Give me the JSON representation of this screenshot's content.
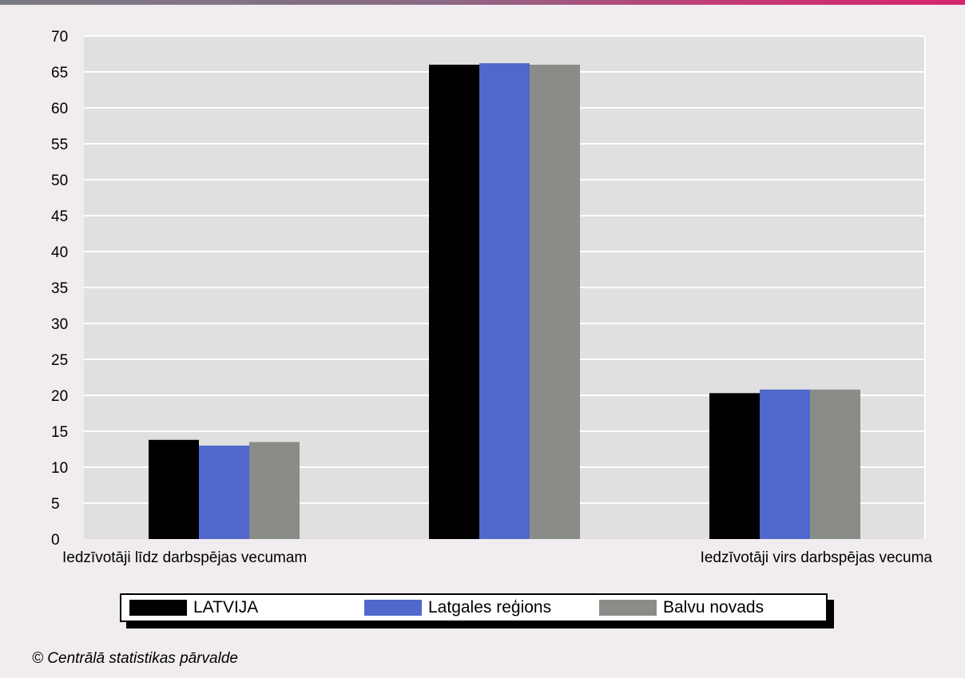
{
  "chart_data": {
    "type": "bar",
    "categories": [
      "Iedzīvotāji līdz darbspējas vecumam",
      "",
      "Iedzīvotāji virs darbspējas vecuma"
    ],
    "series": [
      {
        "name": "LATVIJA",
        "color": "#000000",
        "values": [
          13.8,
          66.0,
          20.3
        ]
      },
      {
        "name": "Latgales reģions",
        "color": "#5068cc",
        "values": [
          13.0,
          66.2,
          20.8
        ]
      },
      {
        "name": "Balvu novads",
        "color": "#8a8c88",
        "values": [
          13.5,
          66.0,
          20.8
        ]
      }
    ],
    "ylim": [
      0,
      70
    ],
    "yticks": [
      0,
      5,
      10,
      15,
      20,
      25,
      30,
      35,
      40,
      45,
      50,
      55,
      60,
      65,
      70
    ],
    "grid": true,
    "plot_background": "#e0e0e0",
    "legend_position": "bottom"
  },
  "footer": {
    "credit": "© Centrālā statistikas pārvalde"
  }
}
